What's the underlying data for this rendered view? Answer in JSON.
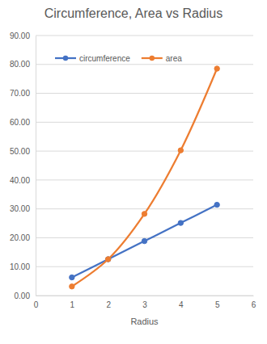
{
  "chart_data": {
    "type": "line",
    "title": "Circumference, Area vs Radius",
    "x_label": "Radius",
    "x": [
      1,
      2,
      3,
      4,
      5
    ],
    "series": [
      {
        "name": "circumference",
        "color": "#4472c4",
        "values": [
          6.28,
          12.57,
          18.85,
          25.13,
          31.42
        ]
      },
      {
        "name": "area",
        "color": "#ed7d31",
        "values": [
          3.14,
          12.57,
          28.27,
          50.27,
          78.54
        ]
      }
    ],
    "xlim": [
      0,
      6
    ],
    "xticks": [
      0,
      1,
      2,
      3,
      4,
      5,
      6
    ],
    "ylim": [
      0,
      90
    ],
    "yticks": [
      {
        "value": 0,
        "label": "0.00"
      },
      {
        "value": 10,
        "label": "10.00"
      },
      {
        "value": 20,
        "label": "20.00"
      },
      {
        "value": 30,
        "label": "30.00"
      },
      {
        "value": 40,
        "label": "40.00"
      },
      {
        "value": 50,
        "label": "50.00"
      },
      {
        "value": 60,
        "label": "60.00"
      },
      {
        "value": 70,
        "label": "70.00"
      },
      {
        "value": 80,
        "label": "80.00"
      },
      {
        "value": 90,
        "label": "90.00"
      }
    ],
    "grid": true,
    "legend": "top-left",
    "marker": "circle",
    "line_style": "smooth"
  }
}
